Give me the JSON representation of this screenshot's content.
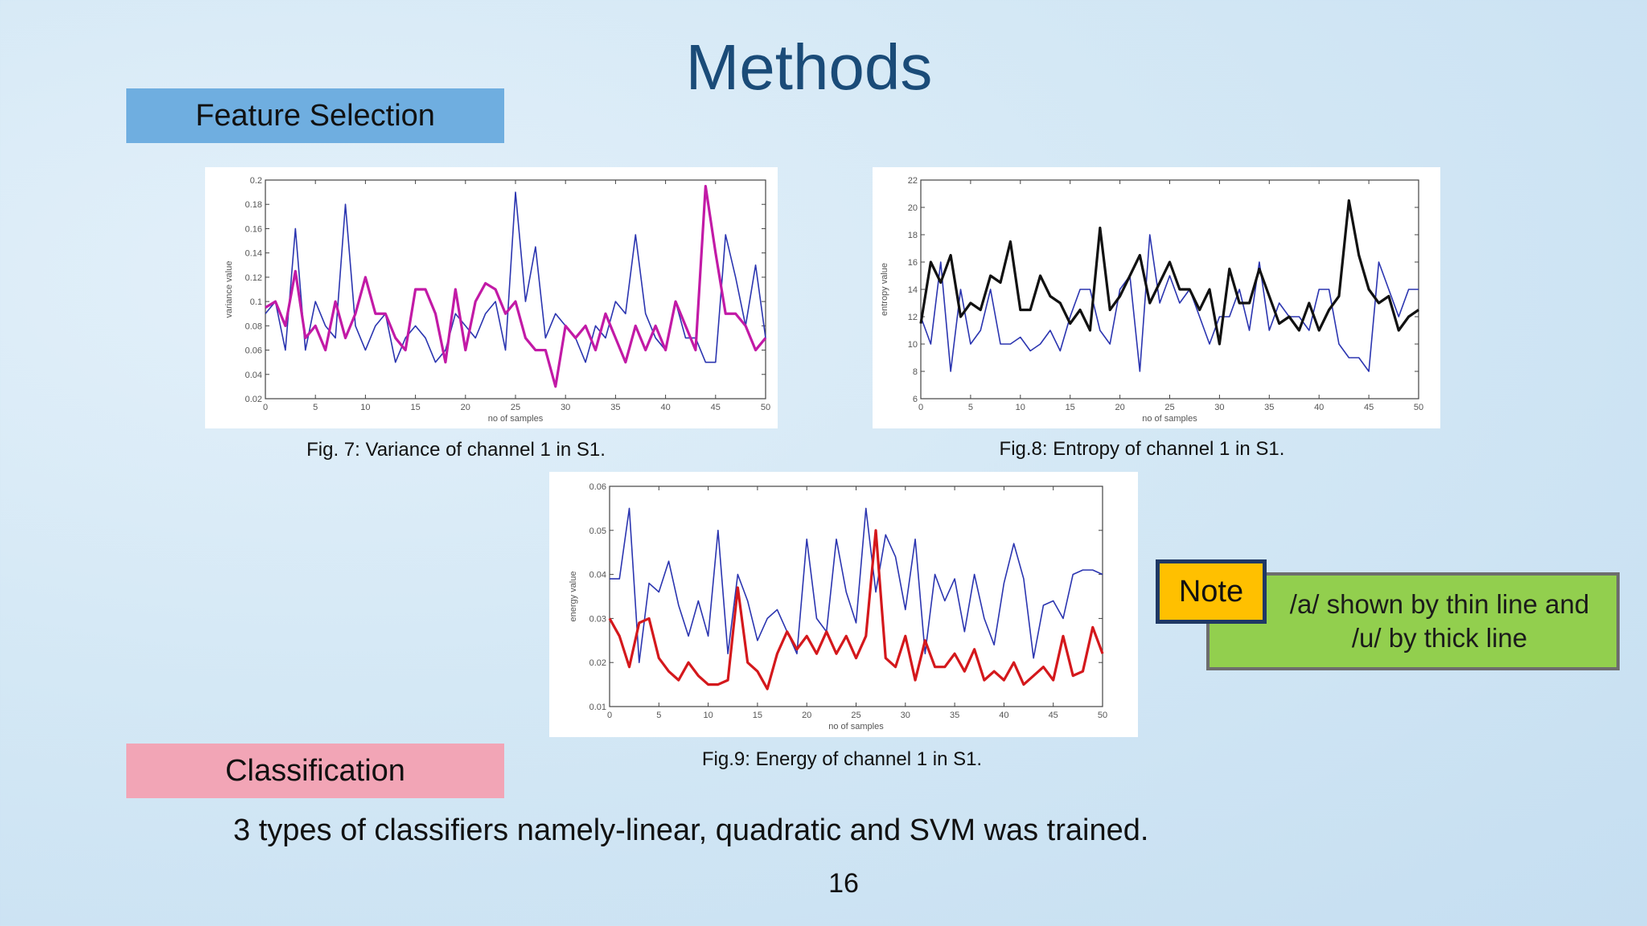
{
  "slide": {
    "title": "Methods",
    "feature_selection_label": "Feature Selection",
    "classification_label": "Classification",
    "body_text": "3 types of classifiers namely-linear, quadratic and SVM was trained.",
    "page_number": "16",
    "note": {
      "tag": "Note",
      "text": "/a/ shown by thin line and /u/ by thick line"
    },
    "colors": {
      "title": "#1a4b78",
      "feature_label_bg": "#6faee0",
      "classification_label_bg": "#f2a5b6",
      "note_bg": "#92cf4e",
      "note_tag_bg": "#ffc000"
    }
  },
  "chart_data": [
    {
      "type": "line",
      "caption": "Fig. 7: Variance of channel 1 in S1.",
      "xlabel": "no of samples",
      "ylabel": "variance value",
      "xlim": [
        0,
        50
      ],
      "ylim": [
        0.02,
        0.2
      ],
      "xticks": [
        0,
        5,
        10,
        15,
        20,
        25,
        30,
        35,
        40,
        45,
        50
      ],
      "yticks": [
        0.02,
        0.04,
        0.06,
        0.08,
        0.1,
        0.12,
        0.14,
        0.16,
        0.18,
        0.2
      ],
      "ytick_labels": [
        "0.02",
        "0.04",
        "0.06",
        "0.08",
        "0.1",
        "0.12",
        "0.14",
        "0.16",
        "0.18",
        "0.2"
      ],
      "series": [
        {
          "name": "/a/ (thin)",
          "color": "#2b35b0",
          "width": 1.6,
          "values": [
            0.09,
            0.1,
            0.06,
            0.16,
            0.06,
            0.1,
            0.08,
            0.07,
            0.18,
            0.08,
            0.06,
            0.08,
            0.09,
            0.05,
            0.07,
            0.08,
            0.07,
            0.05,
            0.06,
            0.09,
            0.08,
            0.07,
            0.09,
            0.1,
            0.06,
            0.19,
            0.1,
            0.145,
            0.07,
            0.09,
            0.08,
            0.07,
            0.05,
            0.08,
            0.07,
            0.1,
            0.09,
            0.155,
            0.09,
            0.07,
            0.06,
            0.1,
            0.07,
            0.07,
            0.05,
            0.05,
            0.155,
            0.12,
            0.08,
            0.13,
            0.07
          ]
        },
        {
          "name": "/u/ (thick)",
          "color": "#c21aa6",
          "width": 3.2,
          "values": [
            0.095,
            0.1,
            0.08,
            0.125,
            0.07,
            0.08,
            0.06,
            0.1,
            0.07,
            0.09,
            0.12,
            0.09,
            0.09,
            0.07,
            0.06,
            0.11,
            0.11,
            0.09,
            0.05,
            0.11,
            0.06,
            0.1,
            0.115,
            0.11,
            0.09,
            0.1,
            0.07,
            0.06,
            0.06,
            0.03,
            0.08,
            0.07,
            0.08,
            0.06,
            0.09,
            0.07,
            0.05,
            0.08,
            0.06,
            0.08,
            0.06,
            0.1,
            0.08,
            0.06,
            0.195,
            0.14,
            0.09,
            0.09,
            0.08,
            0.06,
            0.07
          ]
        }
      ]
    },
    {
      "type": "line",
      "caption": "Fig.8: Entropy of channel 1 in S1.",
      "xlabel": "no of samples",
      "ylabel": "entropy value",
      "xlim": [
        0,
        50
      ],
      "ylim": [
        6,
        22
      ],
      "xticks": [
        0,
        5,
        10,
        15,
        20,
        25,
        30,
        35,
        40,
        45,
        50
      ],
      "yticks": [
        6,
        8,
        10,
        12,
        14,
        16,
        18,
        20,
        22
      ],
      "ytick_labels": [
        "6",
        "8",
        "10",
        "12",
        "14",
        "16",
        "18",
        "20",
        "22"
      ],
      "series": [
        {
          "name": "/a/ (thin)",
          "color": "#2b35b0",
          "width": 1.6,
          "values": [
            12,
            10,
            16,
            8,
            14,
            10,
            11,
            14,
            10,
            10,
            10.5,
            9.5,
            10,
            11,
            9.5,
            12,
            14,
            14,
            11,
            10,
            14,
            15,
            8,
            18,
            13,
            15,
            13,
            14,
            12,
            10,
            12,
            12,
            14,
            11,
            16,
            11,
            13,
            12,
            12,
            11,
            14,
            14,
            10,
            9,
            9,
            8,
            16,
            14,
            12,
            14,
            14
          ]
        },
        {
          "name": "/u/ (thick)",
          "color": "#111111",
          "width": 3.2,
          "values": [
            11.5,
            16,
            14.5,
            16.5,
            12,
            13,
            12.5,
            15,
            14.5,
            17.5,
            12.5,
            12.5,
            15,
            13.5,
            13,
            11.5,
            12.5,
            11,
            18.5,
            12.5,
            13.5,
            15,
            16.5,
            13,
            14.5,
            16,
            14,
            14,
            12.5,
            14,
            10,
            15.5,
            13,
            13,
            15.5,
            13.5,
            11.5,
            12,
            11,
            13,
            11,
            12.5,
            13.5,
            20.5,
            16.5,
            14,
            13,
            13.5,
            11,
            12,
            12.5
          ]
        }
      ]
    },
    {
      "type": "line",
      "caption": "Fig.9: Energy of channel 1 in S1.",
      "xlabel": "no of samples",
      "ylabel": "energy value",
      "xlim": [
        0,
        50
      ],
      "ylim": [
        0.01,
        0.06
      ],
      "xticks": [
        0,
        5,
        10,
        15,
        20,
        25,
        30,
        35,
        40,
        45,
        50
      ],
      "yticks": [
        0.01,
        0.02,
        0.03,
        0.04,
        0.05,
        0.06
      ],
      "ytick_labels": [
        "0.01",
        "0.02",
        "0.03",
        "0.04",
        "0.05",
        "0.06"
      ],
      "series": [
        {
          "name": "/a/ (thin)",
          "color": "#2b35b0",
          "width": 1.6,
          "values": [
            0.039,
            0.039,
            0.055,
            0.02,
            0.038,
            0.036,
            0.043,
            0.033,
            0.026,
            0.034,
            0.026,
            0.05,
            0.022,
            0.04,
            0.034,
            0.025,
            0.03,
            0.032,
            0.027,
            0.022,
            0.048,
            0.03,
            0.027,
            0.048,
            0.036,
            0.029,
            0.055,
            0.036,
            0.049,
            0.044,
            0.032,
            0.048,
            0.022,
            0.04,
            0.034,
            0.039,
            0.027,
            0.04,
            0.03,
            0.024,
            0.038,
            0.047,
            0.039,
            0.021,
            0.033,
            0.034,
            0.03,
            0.04,
            0.041,
            0.041,
            0.04
          ]
        },
        {
          "name": "/u/ (thick)",
          "color": "#d4181c",
          "width": 3.2,
          "values": [
            0.03,
            0.026,
            0.019,
            0.029,
            0.03,
            0.021,
            0.018,
            0.016,
            0.02,
            0.017,
            0.015,
            0.015,
            0.016,
            0.037,
            0.02,
            0.018,
            0.014,
            0.022,
            0.027,
            0.023,
            0.026,
            0.022,
            0.027,
            0.022,
            0.026,
            0.021,
            0.026,
            0.05,
            0.021,
            0.019,
            0.026,
            0.016,
            0.025,
            0.019,
            0.019,
            0.022,
            0.018,
            0.023,
            0.016,
            0.018,
            0.016,
            0.02,
            0.015,
            0.017,
            0.019,
            0.016,
            0.026,
            0.017,
            0.018,
            0.028,
            0.022
          ]
        }
      ]
    }
  ]
}
